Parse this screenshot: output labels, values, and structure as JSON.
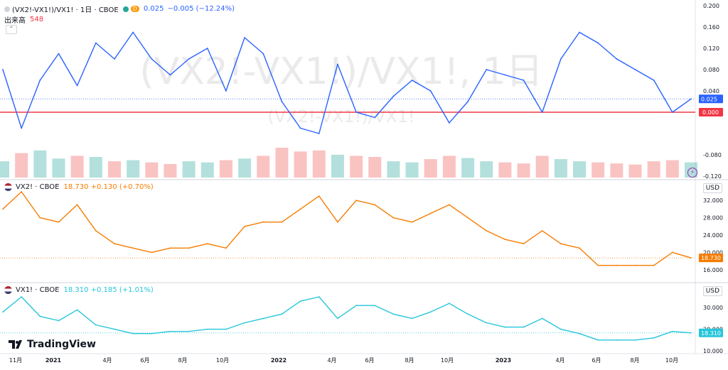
{
  "pane1": {
    "title": "(VX2!-VX1!)/VX1! · 1日 · CBOE",
    "badge": "D",
    "last_value": "0.025",
    "change": "−0.005 (−12.24%)",
    "volume_label": "出来高",
    "volume_value": "548",
    "watermark": "(VX2!-VX1!)/VX1!, 1日",
    "watermark_sub": "(VX2!-VX1!)/VX1!",
    "line_color": "#2962ff",
    "zero_line_color": "#f23645",
    "price_tag": "0.025",
    "zero_tag": "0.000"
  },
  "pane2": {
    "title": "VX2! · CBOE",
    "values": "18.730 +0.130 (+0.70%)",
    "currency": "USD",
    "line_color": "#f57c00",
    "price_tag": "18.730"
  },
  "pane3": {
    "title": "VX1! · CBOE",
    "values": "18.310 +0.185 (+1.01%)",
    "currency": "USD",
    "line_color": "#26c6da",
    "price_tag": "18.310"
  },
  "brand": "TradingView",
  "x_axis_labels": [
    "11月",
    "2021",
    "4月",
    "6月",
    "8月",
    "10月",
    "2022",
    "4月",
    "6月",
    "8月",
    "10月",
    "2023",
    "4月",
    "6月",
    "8月",
    "10月"
  ],
  "chart_data": [
    {
      "type": "line",
      "title": "(VX2!-VX1!)/VX1! · 1日 · CBOE",
      "x": [
        "2020-10",
        "2020-11",
        "2020-12",
        "2021-01",
        "2021-02",
        "2021-03",
        "2021-04",
        "2021-05",
        "2021-06",
        "2021-07",
        "2021-08",
        "2021-09",
        "2021-10",
        "2021-11",
        "2021-12",
        "2022-01",
        "2022-02",
        "2022-03",
        "2022-04",
        "2022-05",
        "2022-06",
        "2022-07",
        "2022-08",
        "2022-09",
        "2022-10",
        "2022-11",
        "2022-12",
        "2023-01",
        "2023-02",
        "2023-03",
        "2023-04",
        "2023-05",
        "2023-06",
        "2023-07",
        "2023-08",
        "2023-09",
        "2023-10",
        "2023-11"
      ],
      "series": [
        {
          "name": "(VX2!-VX1!)/VX1!",
          "values": [
            0.08,
            -0.03,
            0.06,
            0.11,
            0.05,
            0.13,
            0.1,
            0.15,
            0.1,
            0.07,
            0.1,
            0.12,
            0.04,
            0.14,
            0.11,
            0.02,
            -0.03,
            -0.04,
            0.09,
            0.0,
            -0.01,
            0.03,
            0.06,
            0.04,
            -0.02,
            0.02,
            0.08,
            0.07,
            0.06,
            0.0,
            0.1,
            0.15,
            0.13,
            0.1,
            0.08,
            0.06,
            0.0,
            0.025
          ]
        }
      ],
      "ylim": [
        -0.12,
        0.2
      ],
      "yticks": [
        "0.200",
        "0.160",
        "0.120",
        "0.080",
        "0.040",
        "0.000",
        "-0.080",
        "-0.120"
      ],
      "reference_line": 0.0,
      "volume": [
        30,
        45,
        50,
        35,
        40,
        38,
        30,
        32,
        28,
        25,
        30,
        28,
        32,
        35,
        40,
        55,
        48,
        50,
        42,
        40,
        38,
        30,
        28,
        34,
        40,
        36,
        30,
        28,
        26,
        40,
        34,
        30,
        28,
        26,
        24,
        30,
        32,
        28
      ]
    },
    {
      "type": "line",
      "title": "VX2! · CBOE",
      "x": [
        "2020-10",
        "2020-11",
        "2020-12",
        "2021-01",
        "2021-02",
        "2021-03",
        "2021-04",
        "2021-05",
        "2021-06",
        "2021-07",
        "2021-08",
        "2021-09",
        "2021-10",
        "2021-11",
        "2021-12",
        "2022-01",
        "2022-02",
        "2022-03",
        "2022-04",
        "2022-05",
        "2022-06",
        "2022-07",
        "2022-08",
        "2022-09",
        "2022-10",
        "2022-11",
        "2022-12",
        "2023-01",
        "2023-02",
        "2023-03",
        "2023-04",
        "2023-05",
        "2023-06",
        "2023-07",
        "2023-08",
        "2023-09",
        "2023-10",
        "2023-11"
      ],
      "series": [
        {
          "name": "VX2!",
          "values": [
            30,
            34,
            28,
            27,
            31,
            25,
            22,
            21,
            20,
            21,
            21,
            22,
            21,
            26,
            27,
            27,
            30,
            33,
            27,
            32,
            31,
            28,
            27,
            29,
            31,
            28,
            25,
            23,
            22,
            25,
            22,
            21,
            17,
            17,
            17,
            17,
            20,
            18.73
          ]
        }
      ],
      "ylim": [
        14,
        34
      ],
      "yticks": [
        "32.000",
        "28.000",
        "24.000",
        "20.000",
        "16.000"
      ]
    },
    {
      "type": "line",
      "title": "VX1! · CBOE",
      "x": [
        "2020-10",
        "2020-11",
        "2020-12",
        "2021-01",
        "2021-02",
        "2021-03",
        "2021-04",
        "2021-05",
        "2021-06",
        "2021-07",
        "2021-08",
        "2021-09",
        "2021-10",
        "2021-11",
        "2021-12",
        "2022-01",
        "2022-02",
        "2022-03",
        "2022-04",
        "2022-05",
        "2022-06",
        "2022-07",
        "2022-08",
        "2022-09",
        "2022-10",
        "2022-11",
        "2022-12",
        "2023-01",
        "2023-02",
        "2023-03",
        "2023-04",
        "2023-05",
        "2023-06",
        "2023-07",
        "2023-08",
        "2023-09",
        "2023-10",
        "2023-11"
      ],
      "series": [
        {
          "name": "VX1!",
          "values": [
            28,
            35,
            26,
            24,
            29,
            22,
            20,
            18,
            18,
            19,
            19,
            20,
            20,
            23,
            25,
            27,
            33,
            35,
            25,
            31,
            31,
            27,
            25,
            28,
            32,
            27,
            23,
            21,
            21,
            25,
            20,
            18,
            15,
            15,
            15,
            16,
            19,
            18.31
          ]
        }
      ],
      "ylim": [
        10,
        36
      ],
      "yticks": [
        "30.000",
        "20.000",
        "10.000"
      ]
    }
  ]
}
